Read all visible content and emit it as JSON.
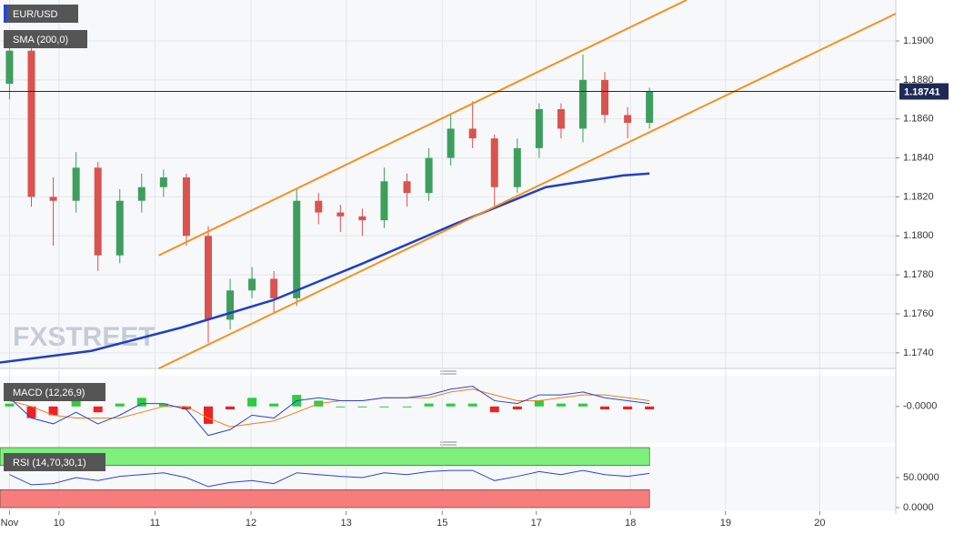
{
  "chart_data": [
    {
      "type": "candlestick",
      "title": "EUR/USD",
      "indicator": "SMA (200,0)",
      "watermark": "FXSTREET",
      "x": [
        0.1,
        0.33,
        0.56,
        0.8,
        1.03,
        1.26,
        1.49,
        1.72,
        1.96,
        2.19,
        2.42,
        2.65,
        2.88,
        3.12,
        3.35,
        3.58,
        3.81,
        4.04,
        4.28,
        4.51,
        4.74,
        4.97,
        5.2,
        5.44,
        5.67,
        5.9,
        6.13,
        6.36,
        6.6,
        6.83
      ],
      "open": [
        1.1878,
        1.1895,
        1.182,
        1.1818,
        1.1835,
        1.179,
        1.1818,
        1.1825,
        1.183,
        1.18,
        1.1757,
        1.1772,
        1.1778,
        1.1768,
        1.1818,
        1.1812,
        1.181,
        1.1808,
        1.1828,
        1.1822,
        1.184,
        1.1855,
        1.185,
        1.1825,
        1.1845,
        1.1865,
        1.1855,
        1.188,
        1.1862,
        1.1858
      ],
      "high": [
        1.1905,
        1.19,
        1.183,
        1.1843,
        1.1838,
        1.1824,
        1.1832,
        1.1834,
        1.1832,
        1.1805,
        1.1778,
        1.1784,
        1.1782,
        1.1824,
        1.1822,
        1.1816,
        1.1814,
        1.1835,
        1.1832,
        1.1845,
        1.1862,
        1.1869,
        1.1852,
        1.185,
        1.1868,
        1.1868,
        1.1893,
        1.1884,
        1.1866,
        1.1876
      ],
      "low": [
        1.187,
        1.1815,
        1.1795,
        1.1812,
        1.1782,
        1.1786,
        1.1812,
        1.182,
        1.1795,
        1.1745,
        1.1752,
        1.1768,
        1.176,
        1.1764,
        1.1806,
        1.1802,
        1.18,
        1.1804,
        1.1815,
        1.1818,
        1.1836,
        1.1845,
        1.1815,
        1.1822,
        1.184,
        1.185,
        1.1848,
        1.1858,
        1.185,
        1.1855
      ],
      "close": [
        1.1895,
        1.182,
        1.1818,
        1.1835,
        1.179,
        1.1818,
        1.1825,
        1.183,
        1.18,
        1.1757,
        1.1772,
        1.1778,
        1.1768,
        1.1818,
        1.1812,
        1.181,
        1.1808,
        1.1828,
        1.1822,
        1.184,
        1.1855,
        1.185,
        1.1825,
        1.1845,
        1.1865,
        1.1855,
        1.188,
        1.1862,
        1.1858,
        1.18741
      ],
      "up_color": "#3f9e5e",
      "down_color": "#d9534f",
      "sma": {
        "color": "#1f3fc7",
        "x": [
          0,
          0.96,
          1.91,
          2.87,
          3.82,
          4.78,
          5.74,
          6.55,
          6.83
        ],
        "values": [
          1.1735,
          1.1741,
          1.1753,
          1.1767,
          1.1786,
          1.1806,
          1.1825,
          1.1831,
          1.1832
        ]
      },
      "trendlines": [
        {
          "color": "#f5901e",
          "x": [
            1.67,
            7.22
          ],
          "y": [
            1.179,
            1.1921
          ]
        },
        {
          "color": "#f5901e",
          "x": [
            1.67,
            9.42
          ],
          "y": [
            1.1732,
            1.1914
          ]
        }
      ],
      "last_price": {
        "value": 1.18741,
        "label": "1.18741"
      },
      "xlim": [
        0,
        9.42
      ],
      "ylim": [
        1.1732,
        1.1921
      ],
      "yticks": [
        {
          "value": 1.174,
          "label": "1.1740"
        },
        {
          "value": 1.176,
          "label": "1.1760"
        },
        {
          "value": 1.178,
          "label": "1.1780"
        },
        {
          "value": 1.18,
          "label": "1.1800"
        },
        {
          "value": 1.182,
          "label": "1.1820"
        },
        {
          "value": 1.184,
          "label": "1.1840"
        },
        {
          "value": 1.186,
          "label": "1.1860"
        },
        {
          "value": 1.188,
          "label": "1.1880"
        },
        {
          "value": 1.19,
          "label": "1.1900"
        }
      ],
      "xticks": [
        {
          "value": 0.1,
          "label": "Nov"
        },
        {
          "value": 0.62,
          "label": "10"
        },
        {
          "value": 1.63,
          "label": "11"
        },
        {
          "value": 2.64,
          "label": "12"
        },
        {
          "value": 3.64,
          "label": "13"
        },
        {
          "value": 4.65,
          "label": "15"
        },
        {
          "value": 5.64,
          "label": "17"
        },
        {
          "value": 6.63,
          "label": "18"
        },
        {
          "value": 7.63,
          "label": "19"
        },
        {
          "value": 8.62,
          "label": "20"
        }
      ],
      "grid": true
    },
    {
      "type": "macd",
      "title": "MACD (12,26,9)",
      "macd": [
        0.0003,
        -0.0004,
        -0.0006,
        -0.0002,
        -0.0006,
        -0.0003,
        0.0001,
        0.0001,
        -0.0001,
        -0.001,
        -0.0008,
        -0.0003,
        -0.0004,
        0.0002,
        0.0003,
        0.0002,
        0.0002,
        0.0003,
        0.0003,
        0.0004,
        0.0006,
        0.0007,
        0.0002,
        0.0001,
        0.0004,
        0.0004,
        0.0005,
        0.0003,
        0.0002,
        0.0001
      ],
      "signal": [
        0.0002,
        0,
        -0.0003,
        -0.0004,
        -0.0004,
        -0.0004,
        -0.0002,
        0,
        0,
        -0.0004,
        -0.0007,
        -0.0006,
        -0.0005,
        -0.0002,
        0.0001,
        0.0002,
        0.0002,
        0.0003,
        0.0003,
        0.0003,
        0.0005,
        0.0006,
        0.0004,
        0.0002,
        0.0002,
        0.0003,
        0.0004,
        0.0004,
        0.0003,
        0.0002
      ],
      "histogram": [
        0.0001,
        -0.0004,
        -0.0003,
        0.0002,
        -0.0002,
        0.0001,
        0.0003,
        0.0001,
        -0.0001,
        -0.0006,
        -0.0001,
        0.0003,
        0.0001,
        0.0004,
        0.0002,
        0,
        0,
        0,
        0,
        0.0001,
        0.0001,
        0.0001,
        -0.0002,
        -0.0001,
        0.0002,
        0.0001,
        0.0001,
        -0.0001,
        -0.0001,
        -0.0001
      ],
      "macd_color": "#2a45d6",
      "signal_color": "#f07f1a",
      "pos_color": "#2ecc40",
      "neg_color": "#ee2222",
      "ylim": [
        -0.0012,
        0.001
      ],
      "yticks": [
        {
          "value": 0,
          "label": "-0.0000"
        }
      ]
    },
    {
      "type": "rsi",
      "title": "RSI (14,70,30,1)",
      "values": [
        55,
        38,
        40,
        50,
        45,
        52,
        55,
        58,
        50,
        35,
        42,
        45,
        40,
        58,
        55,
        52,
        50,
        58,
        55,
        60,
        62,
        62,
        45,
        52,
        60,
        55,
        62,
        55,
        52,
        57
      ],
      "color": "#2a45d6",
      "overbought": 70,
      "oversold": 30,
      "overbought_color": "#7ef07e",
      "oversold_color": "#f77c7c",
      "ylim": [
        0,
        100
      ],
      "yticks": [
        {
          "value": 0,
          "label": "0.0000"
        },
        {
          "value": 50,
          "label": "50.0000"
        }
      ]
    }
  ]
}
